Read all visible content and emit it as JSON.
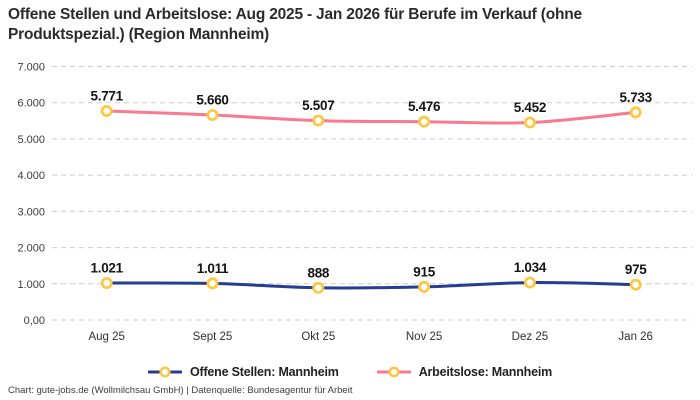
{
  "header": {
    "title": "Offene Stellen und Arbeitslose: Aug 2025 - Jan 2026 für Berufe im Verkauf (ohne Produktspezial.) (Region Mannheim)"
  },
  "chart_data": {
    "type": "line",
    "title": "Offene Stellen und Arbeitslose: Aug 2025 - Jan 2026 für Berufe im Verkauf (ohne Produktspezial.) (Region Mannheim)",
    "categories": [
      "Aug 25",
      "Sept 25",
      "Okt 25",
      "Nov 25",
      "Dez 25",
      "Jan 26"
    ],
    "series": [
      {
        "name": "Offene Stellen: Mannheim",
        "color": "#263d94",
        "values": [
          1021,
          1011,
          888,
          915,
          1034,
          975
        ],
        "labels": [
          "1.021",
          "1.011",
          "888",
          "915",
          "1.034",
          "975"
        ]
      },
      {
        "name": "Arbeitslose: Mannheim",
        "color": "#f87a90",
        "values": [
          5771,
          5660,
          5507,
          5476,
          5452,
          5733
        ],
        "labels": [
          "5.771",
          "5.660",
          "5.507",
          "5.476",
          "5.452",
          "5.733"
        ]
      }
    ],
    "marker": {
      "stroke": "#ffc63e",
      "fill": "#ffffff"
    },
    "ylim": [
      0,
      7000
    ],
    "yticks": [
      {
        "value": 0,
        "label": "0,00"
      },
      {
        "value": 1000,
        "label": "1.000"
      },
      {
        "value": 2000,
        "label": "2.000"
      },
      {
        "value": 3000,
        "label": "3.000"
      },
      {
        "value": 4000,
        "label": "4.000"
      },
      {
        "value": 5000,
        "label": "5.000"
      },
      {
        "value": 6000,
        "label": "6.000"
      },
      {
        "value": 7000,
        "label": "7.000"
      }
    ],
    "grid": "dashed-horizontal",
    "grid_color": "#cbcbcb",
    "legend_position": "bottom"
  },
  "footer": {
    "credit": "Chart: gute-jobs.de (Wollmilchsau GmbH) | Datenquelle: Bundesagentur für Arbeit"
  }
}
